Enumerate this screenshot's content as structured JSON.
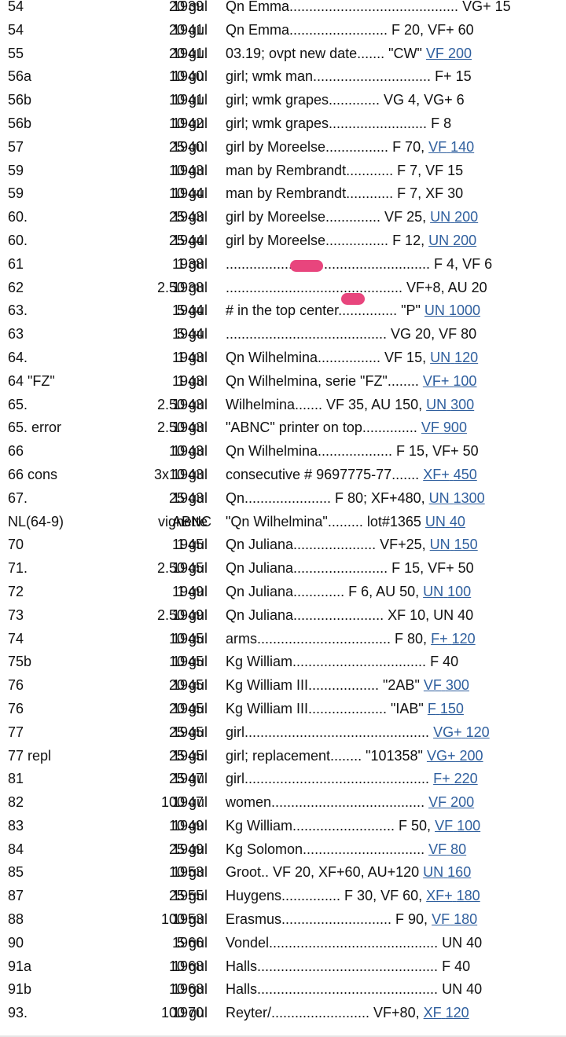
{
  "rows": [
    {
      "num": "54",
      "denom": "20 gul",
      "year": "1939",
      "desc": "Qn Emma...........................................",
      "grade": "VG+",
      "price": "15"
    },
    {
      "num": "54",
      "denom": "20 gul",
      "year": "1941",
      "desc": "Qn Emma......................... F 20,",
      "grade": "VF+",
      "price": "60"
    },
    {
      "num": "55",
      "denom": "20 gul",
      "year": "1941",
      "desc": "03.19; ovpt new date....... \"CW\"",
      "grade": "VF",
      "price": "200",
      "link": true
    },
    {
      "num": "56a",
      "denom": "10 gul",
      "year": "1940",
      "desc": "girl; wmk man..............................",
      "grade": "F+",
      "price": "15"
    },
    {
      "num": "56b",
      "denom": "10 gul",
      "year": "1941",
      "desc": "girl; wmk grapes............. VG 4,",
      "grade": "VG+",
      "price": "6"
    },
    {
      "num": "56b",
      "denom": "10 gul",
      "year": "1942",
      "desc": "girl; wmk grapes.........................",
      "grade": "F",
      "price": "8"
    },
    {
      "num": "57",
      "denom": "25 gul",
      "year": "1940",
      "desc": "girl by Moreelse................ F 70,",
      "grade": "VF",
      "price": "140",
      "link": true
    },
    {
      "num": "59",
      "denom": "10 gul",
      "year": "1943",
      "desc": "man by Rembrandt............ F 7,",
      "grade": "VF",
      "price": "15"
    },
    {
      "num": "59",
      "denom": "10 gul",
      "year": "1944",
      "desc": "man by Rembrandt............ F 7,",
      "grade": "XF",
      "price": "30"
    },
    {
      "num": "60.",
      "denom": "25 gul",
      "year": "1943",
      "desc": "girl by Moreelse.............. VF 25,",
      "grade": "UN",
      "price": "200",
      "link": true
    },
    {
      "num": "60.",
      "denom": "25 gul",
      "year": "1944",
      "desc": "girl by Moreelse................ F 12,",
      "grade": "UN",
      "price": "200",
      "link": true
    },
    {
      "num": "61",
      "denom": "1 gul",
      "year": "1938",
      "desc": ".................................................... F 4,",
      "grade": "VF",
      "price": "6"
    },
    {
      "num": "62",
      "denom": "2.50 gul",
      "year": "1938",
      "desc": "............................................. VF+8,",
      "grade": "AU",
      "price": "20"
    },
    {
      "num": "63.",
      "denom": "5 gul",
      "year": "1944",
      "desc": "# in the top center............... \"P\"",
      "grade": "UN",
      "price": "1000",
      "link": true
    },
    {
      "num": "63",
      "denom": "5 gul",
      "year": "1944",
      "desc": "......................................... VG 20,",
      "grade": "VF",
      "price": "80"
    },
    {
      "num": "64.",
      "denom": "1 gul",
      "year": "1943",
      "desc": "Qn Wilhelmina................ VF 15,",
      "grade": "UN",
      "price": "120",
      "link": true
    },
    {
      "num": "64  \"FZ\"",
      "denom": "1 gul",
      "year": "1943",
      "desc": "Qn Wilhelmina, serie \"FZ\"........",
      "grade": "VF+",
      "price": "100",
      "link": true
    },
    {
      "num": "65.",
      "denom": "2.50 gul",
      "year": "1943",
      "desc": "Wilhelmina....... VF 35, AU 150,",
      "grade": "UN",
      "price": "300",
      "link": true
    },
    {
      "num": "65.  error",
      "denom": "2.50 gul",
      "year": "1943",
      "desc": "\"ABNC\" printer on top..............",
      "grade": "VF",
      "price": "900",
      "link": true
    },
    {
      "num": "66",
      "denom": "10 gul",
      "year": "1943",
      "desc": "Qn Wilhelmina................... F 15,",
      "grade": "VF+",
      "price": "50"
    },
    {
      "num": "66   cons",
      "denom": "3x10 gul",
      "year": "1943",
      "desc": "consecutive # 9697775-77.......",
      "grade": "XF+",
      "price": "450",
      "link": true
    },
    {
      "num": "67.",
      "denom": "25 gul",
      "year": "1943",
      "desc": "Qn...................... F 80; XF+480,",
      "grade": "UN",
      "price": "1300",
      "link": true
    },
    {
      "num": "NL(64-9)",
      "denom": "vignette",
      "year": "ABNC",
      "desc": "\"Qn Wilhelmina\"......... lot#1365",
      "grade": "UN",
      "price": "40",
      "link": true
    },
    {
      "num": "70",
      "denom": "1 gul",
      "year": "1945",
      "desc": "Qn Juliana..................... VF+25,",
      "grade": "UN",
      "price": "150",
      "link": true
    },
    {
      "num": "71.",
      "denom": "2.50 gul",
      "year": "1945",
      "desc": "Qn Juliana........................ F 15,",
      "grade": "VF+",
      "price": "50"
    },
    {
      "num": "72",
      "denom": "1 gul",
      "year": "1949",
      "desc": "Qn Juliana............. F 6, AU 50,",
      "grade": "UN",
      "price": "100",
      "link": true
    },
    {
      "num": "73",
      "denom": "2.50 gul",
      "year": "1949",
      "desc": "Qn Juliana....................... XF 10,",
      "grade": "UN",
      "price": "40"
    },
    {
      "num": "74",
      "denom": "10 gul",
      "year": "1945",
      "desc": "arms.................................. F 80,",
      "grade": "F+",
      "price": "120",
      "link": true
    },
    {
      "num": "75b",
      "denom": "10 gul",
      "year": "1945",
      "desc": "Kg William..................................",
      "grade": "F",
      "price": "40"
    },
    {
      "num": "76",
      "denom": "20 gul",
      "year": "1945",
      "desc": "Kg William III.................. \"2AB\"",
      "grade": "VF",
      "price": "300",
      "link": true
    },
    {
      "num": "76",
      "denom": "20 gul",
      "year": "1945",
      "desc": "Kg William III.................... \"IAB\"",
      "grade": "F",
      "price": "150",
      "link": true
    },
    {
      "num": "77",
      "denom": "25 gul",
      "year": "1945",
      "desc": "girl...............................................",
      "grade": "VG+",
      "price": "120",
      "link": true
    },
    {
      "num": "77   repl",
      "denom": "25 gul",
      "year": "1945",
      "desc": "girl; replacement........ \"101358\"",
      "grade": "VG+",
      "price": "200",
      "link": true
    },
    {
      "num": "81",
      "denom": "25 gul",
      "year": "1947",
      "desc": "girl...............................................",
      "grade": "F+",
      "price": "220",
      "link": true
    },
    {
      "num": "82",
      "denom": "100 gul",
      "year": "1947",
      "desc": "women.......................................",
      "grade": "VF",
      "price": "200",
      "link": true
    },
    {
      "num": "83",
      "denom": "10 gul",
      "year": "1949",
      "desc": "Kg William.......................... F 50,",
      "grade": "VF",
      "price": "100",
      "link": true
    },
    {
      "num": "84",
      "denom": "25 gul",
      "year": "1949",
      "desc": "Kg Solomon...............................",
      "grade": "VF",
      "price": "80",
      "link": true
    },
    {
      "num": "85",
      "denom": "10 gul",
      "year": "1953",
      "desc": "Groot.. VF 20, XF+60, AU+120",
      "grade": "UN",
      "price": "160",
      "link": true
    },
    {
      "num": "87",
      "denom": "25 gul",
      "year": "1955",
      "desc": "Huygens............... F 30, VF 60,",
      "grade": "XF+",
      "price": "180",
      "link": true
    },
    {
      "num": "88",
      "denom": "100 gul",
      "year": "1953",
      "desc": "Erasmus............................ F 90,",
      "grade": "VF",
      "price": "180",
      "link": true
    },
    {
      "num": "90",
      "denom": "5 gul",
      "year": "1966",
      "desc": "Vondel...........................................",
      "grade": "UN",
      "price": "40"
    },
    {
      "num": "91a",
      "denom": "10 gul",
      "year": "1968",
      "desc": "Halls..............................................",
      "grade": "F",
      "price": "40"
    },
    {
      "num": "91b",
      "denom": "10 gul",
      "year": "1968",
      "desc": "Halls..............................................",
      "grade": "UN",
      "price": "40"
    },
    {
      "num": "93.",
      "denom": "100 gul",
      "year": "1970",
      "desc": "Reyter/......................... VF+80,",
      "grade": "XF",
      "price": "120",
      "link": true
    }
  ],
  "colors": {
    "link": "#2f5f9e",
    "text": "#111111",
    "marker": "#e8457d"
  }
}
